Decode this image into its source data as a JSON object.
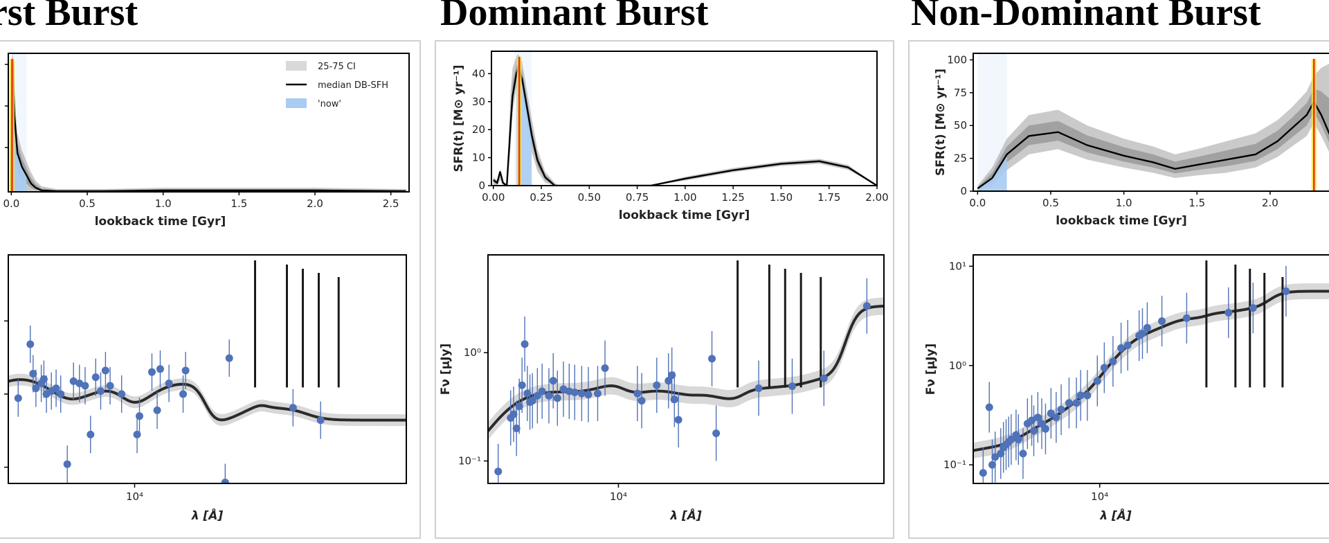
{
  "titles": [
    "rst Burst",
    "Dominant Burst",
    "Non-Dominant Burst"
  ],
  "legend": {
    "ci": "25-75 CI",
    "median": "median DB-SFH",
    "now": "'now'"
  },
  "colors": {
    "median": "#000000",
    "ci": "#9e9e9e",
    "now": "#a9ccf2",
    "burst_marker": "#e8331c",
    "burst_halo": "#f7e23a",
    "photometry": "#4f72b8",
    "model_spectra": "#2a2a2a"
  },
  "chart_data": [
    {
      "type": "area",
      "panel": "First Burst (SFH)",
      "xlabel": "lookback time [Gyr]",
      "ylabel": "",
      "xlim": [
        -0.02,
        2.62
      ],
      "ylim": [
        0,
        1
      ],
      "xticks": [
        "0.0",
        "0.5",
        "1.0",
        "1.5",
        "2.0",
        "2.5"
      ],
      "x": [
        0,
        0.005,
        0.01,
        0.02,
        0.04,
        0.07,
        0.1,
        0.13,
        0.16,
        0.2,
        0.3,
        0.6,
        1.0,
        1.5,
        2.0,
        2.6
      ],
      "median": [
        0.0,
        0.93,
        0.95,
        0.55,
        0.28,
        0.18,
        0.12,
        0.06,
        0.03,
        0.01,
        0.005,
        0.005,
        0.01,
        0.01,
        0.01,
        0.005
      ],
      "ci_upper": [
        0.0,
        0.97,
        1.0,
        0.7,
        0.42,
        0.3,
        0.22,
        0.14,
        0.08,
        0.04,
        0.02,
        0.02,
        0.03,
        0.03,
        0.03,
        0.02
      ],
      "burst_x": 0.005,
      "now_x": [
        0,
        0.1
      ]
    },
    {
      "type": "area",
      "panel": "Dominant Burst (SFH)",
      "xlabel": "lookback time [Gyr]",
      "ylabel": "SFR(t) [M⊙ yr⁻¹]",
      "xlim": [
        -0.01,
        2.0
      ],
      "ylim": [
        0,
        48
      ],
      "xticks": [
        0,
        0.25,
        0.5,
        0.75,
        1.0,
        1.25,
        1.5,
        1.75,
        2.0
      ],
      "xtick_labels": [
        "0.00",
        "0.25",
        "0.50",
        "0.75",
        "1.00",
        "1.25",
        "1.50",
        "1.75",
        "2.00"
      ],
      "yticks": [
        0,
        10,
        20,
        30,
        40
      ],
      "x": [
        0,
        0.02,
        0.035,
        0.05,
        0.07,
        0.09,
        0.1,
        0.12,
        0.13,
        0.15,
        0.17,
        0.2,
        0.23,
        0.27,
        0.32,
        0.34,
        0.82,
        1.0,
        1.25,
        1.5,
        1.7,
        1.85,
        2.0
      ],
      "median": [
        2,
        1,
        5,
        1,
        0,
        22,
        32,
        40,
        42,
        38,
        30,
        18,
        9,
        3,
        0,
        0,
        0,
        2.5,
        5.5,
        7.8,
        8.7,
        6.5,
        0
      ],
      "ci_lower": [
        0,
        0,
        2,
        0,
        0,
        14,
        26,
        35,
        38,
        33,
        24,
        12,
        5,
        1,
        0,
        0,
        0,
        1.8,
        4.8,
        7.0,
        7.8,
        5.6,
        0
      ],
      "ci_upper": [
        3,
        2,
        6,
        2,
        0,
        34,
        42,
        46,
        47,
        44,
        36,
        24,
        13,
        5,
        1,
        0,
        0,
        3.2,
        6.3,
        8.6,
        9.6,
        7.4,
        0
      ],
      "burst_x": 0.135,
      "now_x": [
        0.11,
        0.2
      ]
    },
    {
      "type": "area",
      "panel": "Non-Dominant Burst (SFH)",
      "xlabel": "lookback time [Gyr]",
      "ylabel": "SFR(t) [M⊙ yr⁻¹]",
      "xlim": [
        -0.03,
        2.45
      ],
      "ylim": [
        0,
        105
      ],
      "xticks": [
        0,
        0.5,
        1.0,
        1.5,
        2.0
      ],
      "xtick_labels": [
        "0.0",
        "0.5",
        "1.0",
        "1.5",
        "2.0"
      ],
      "yticks": [
        0,
        25,
        50,
        75,
        100
      ],
      "x": [
        0,
        0.1,
        0.2,
        0.35,
        0.55,
        0.75,
        1.0,
        1.2,
        1.35,
        1.5,
        1.7,
        1.9,
        2.05,
        2.15,
        2.25,
        2.3,
        2.35,
        2.42
      ],
      "median": [
        2,
        10,
        28,
        42,
        45,
        35,
        27,
        22,
        17,
        20,
        24,
        28,
        38,
        48,
        58,
        68,
        58,
        40
      ],
      "ci_lower": [
        0,
        4,
        16,
        28,
        32,
        24,
        18,
        14,
        10,
        12,
        14,
        18,
        26,
        34,
        42,
        52,
        42,
        26
      ],
      "ci_upper": [
        4,
        18,
        40,
        58,
        62,
        50,
        40,
        34,
        28,
        32,
        38,
        44,
        54,
        64,
        76,
        88,
        94,
        98
      ],
      "burst_x": 2.3,
      "now_x": [
        0,
        0.2
      ]
    },
    {
      "type": "scatter",
      "panel": "First Burst (SED)",
      "xlabel": "λ [Å]",
      "ylabel": "",
      "xlog": true,
      "ylog": true,
      "xlim": [
        3600,
        90000
      ],
      "ylim": [
        0.006,
        8
      ],
      "xtick_labels": [
        "10⁴"
      ],
      "ytick_labels": [],
      "points": [
        [
          3900,
          0.088
        ],
        [
          4300,
          0.48
        ],
        [
          4400,
          0.19
        ],
        [
          4500,
          0.12
        ],
        [
          4700,
          0.14
        ],
        [
          4800,
          0.16
        ],
        [
          4900,
          0.1
        ],
        [
          5100,
          0.11
        ],
        [
          5300,
          0.12
        ],
        [
          5500,
          0.1
        ],
        [
          5800,
          0.011
        ],
        [
          6100,
          0.15
        ],
        [
          6400,
          0.14
        ],
        [
          6700,
          0.13
        ],
        [
          7000,
          0.028
        ],
        [
          7300,
          0.17
        ],
        [
          7600,
          0.11
        ],
        [
          7900,
          0.21
        ],
        [
          8200,
          0.13
        ],
        [
          9000,
          0.1
        ],
        [
          10200,
          0.028
        ],
        [
          10400,
          0.05
        ],
        [
          11500,
          0.2
        ],
        [
          12000,
          0.06
        ],
        [
          12300,
          0.22
        ],
        [
          13200,
          0.14
        ],
        [
          14800,
          0.1
        ],
        [
          15100,
          0.21
        ],
        [
          20800,
          0.0062
        ],
        [
          21500,
          0.31
        ],
        [
          36000,
          0.065
        ],
        [
          45000,
          0.044
        ]
      ]
    },
    {
      "type": "scatter",
      "panel": "Dominant Burst (SED)",
      "xlabel": "λ [Å]",
      "ylabel": "Fν [μJy]",
      "xlog": true,
      "ylog": true,
      "xlim": [
        3600,
        80000
      ],
      "ylim": [
        0.062,
        8
      ],
      "xtick_labels": [
        "10⁴"
      ],
      "ytick_labels": [
        "10⁻¹",
        "10⁰"
      ],
      "points": [
        [
          3900,
          0.08
        ],
        [
          4300,
          0.25
        ],
        [
          4400,
          0.27
        ],
        [
          4500,
          0.2
        ],
        [
          4600,
          0.32
        ],
        [
          4700,
          0.5
        ],
        [
          4800,
          1.2
        ],
        [
          4900,
          0.42
        ],
        [
          5000,
          0.35
        ],
        [
          5100,
          0.36
        ],
        [
          5300,
          0.4
        ],
        [
          5500,
          0.44
        ],
        [
          5800,
          0.4
        ],
        [
          6000,
          0.55
        ],
        [
          6200,
          0.38
        ],
        [
          6500,
          0.46
        ],
        [
          6800,
          0.44
        ],
        [
          7100,
          0.43
        ],
        [
          7500,
          0.42
        ],
        [
          7900,
          0.41
        ],
        [
          8500,
          0.42
        ],
        [
          9000,
          0.72
        ],
        [
          11600,
          0.42
        ],
        [
          12000,
          0.36
        ],
        [
          13500,
          0.5
        ],
        [
          14800,
          0.55
        ],
        [
          15200,
          0.62
        ],
        [
          15500,
          0.37
        ],
        [
          16000,
          0.24
        ],
        [
          20800,
          0.88
        ],
        [
          21500,
          0.18
        ],
        [
          30000,
          0.47
        ],
        [
          39000,
          0.49
        ],
        [
          50000,
          0.58
        ],
        [
          70000,
          2.7
        ]
      ]
    },
    {
      "type": "scatter",
      "panel": "Non-Dominant Burst (SED)",
      "xlabel": "λ [Å]",
      "ylabel": "Fν [μJy]",
      "xlog": true,
      "ylog": true,
      "xlim": [
        3400,
        75000
      ],
      "ylim": [
        0.065,
        13
      ],
      "xtick_labels": [
        "10⁴"
      ],
      "ytick_labels": [
        "10⁻¹",
        "10⁰",
        "10¹"
      ],
      "points": [
        [
          3700,
          0.083
        ],
        [
          3900,
          0.38
        ],
        [
          4000,
          0.1
        ],
        [
          4100,
          0.12
        ],
        [
          4300,
          0.13
        ],
        [
          4400,
          0.15
        ],
        [
          4500,
          0.16
        ],
        [
          4600,
          0.17
        ],
        [
          4700,
          0.18
        ],
        [
          4900,
          0.2
        ],
        [
          5000,
          0.18
        ],
        [
          5200,
          0.13
        ],
        [
          5400,
          0.26
        ],
        [
          5600,
          0.28
        ],
        [
          5700,
          0.22
        ],
        [
          5900,
          0.3
        ],
        [
          6100,
          0.26
        ],
        [
          6300,
          0.23
        ],
        [
          6600,
          0.33
        ],
        [
          6900,
          0.3
        ],
        [
          7200,
          0.36
        ],
        [
          7700,
          0.42
        ],
        [
          8200,
          0.42
        ],
        [
          8500,
          0.5
        ],
        [
          9000,
          0.5
        ],
        [
          9800,
          0.7
        ],
        [
          10400,
          0.95
        ],
        [
          11200,
          1.1
        ],
        [
          12000,
          1.5
        ],
        [
          12700,
          1.6
        ],
        [
          14000,
          2.0
        ],
        [
          14400,
          2.1
        ],
        [
          15000,
          2.4
        ],
        [
          17000,
          2.8
        ],
        [
          21000,
          3.0
        ],
        [
          30000,
          3.4
        ],
        [
          37000,
          3.8
        ],
        [
          49000,
          5.6
        ]
      ]
    }
  ]
}
